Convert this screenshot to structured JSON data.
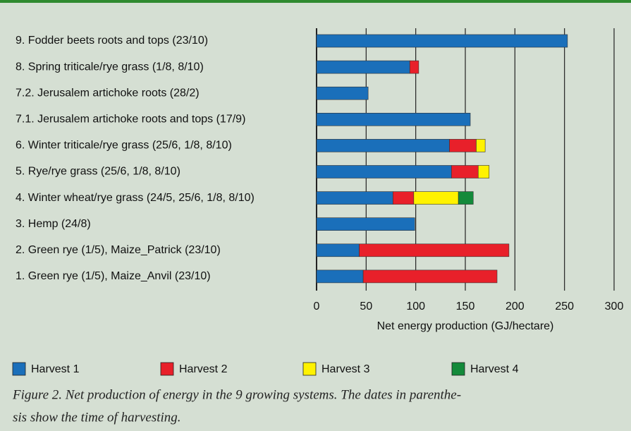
{
  "chart_data": {
    "type": "stacked-barh",
    "categories": [
      "9. Fodder beets  roots and tops (23/10)",
      "8. Spring triticale/rye grass (1/8, 8/10)",
      "7.2. Jerusalem artichoke roots (28/2)",
      "7.1. Jerusalem artichoke roots and tops (17/9)",
      "6. Winter triticale/rye grass (25/6, 1/8, 8/10)",
      "5. Rye/rye grass (25/6, 1/8, 8/10)",
      "4. Winter wheat/rye grass (24/5, 25/6, 1/8, 8/10)",
      "3. Hemp (24/8)",
      "2. Green rye (1/5), Maize_Patrick (23/10)",
      "1. Green rye (1/5), Maize_Anvil (23/10)"
    ],
    "series": [
      {
        "name": "Harvest 1",
        "color": "#1a6fba",
        "values": [
          253,
          94,
          52,
          155,
          134,
          136,
          77,
          99,
          43,
          47
        ]
      },
      {
        "name": "Harvest 2",
        "color": "#e8202a",
        "values": [
          null,
          9,
          null,
          null,
          27,
          27,
          21,
          null,
          151,
          135
        ]
      },
      {
        "name": "Harvest 3",
        "color": "#fff200",
        "values": [
          null,
          null,
          null,
          null,
          9,
          11,
          45,
          null,
          null,
          null
        ]
      },
      {
        "name": "Harvest 4",
        "color": "#138a3a",
        "values": [
          null,
          null,
          null,
          null,
          null,
          null,
          15,
          null,
          null,
          null
        ]
      }
    ],
    "xlabel": "Net energy production (GJ/hectare)",
    "xlim": [
      0,
      300
    ],
    "xticks": [
      0,
      50,
      100,
      150,
      200,
      250,
      300
    ],
    "grid": true,
    "caption": [
      "Figure 2. Net production of energy in the 9 growing systems. The dates in parenthe-",
      "sis show the time of harvesting."
    ]
  }
}
